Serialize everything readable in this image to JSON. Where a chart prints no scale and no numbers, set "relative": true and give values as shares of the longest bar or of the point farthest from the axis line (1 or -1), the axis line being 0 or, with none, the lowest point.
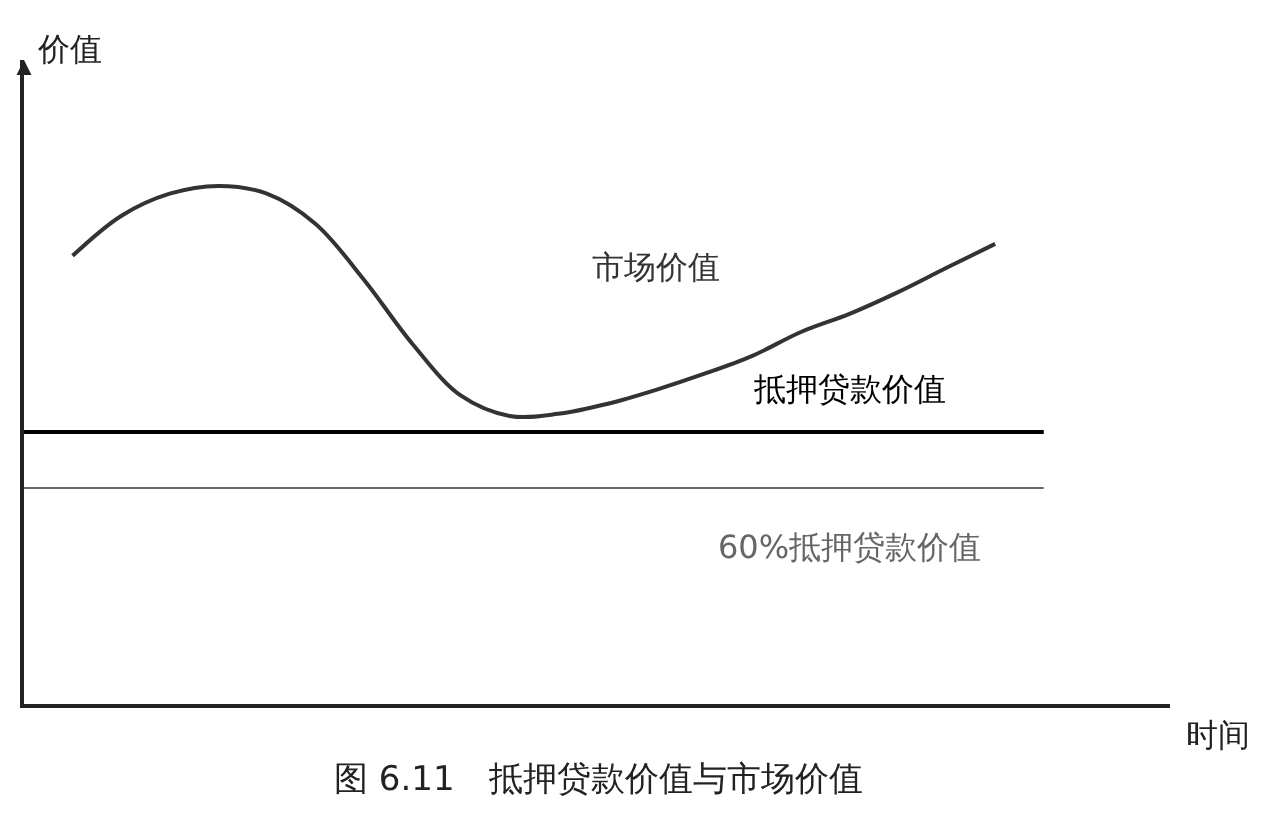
{
  "chart_data": {
    "type": "line",
    "relative": true,
    "title": "图 6.11　抵押贷款价值与市场价值",
    "xlabel": "时间",
    "ylabel": "价值",
    "categories": [
      null,
      null,
      null,
      null,
      null,
      null,
      null,
      null,
      null,
      null,
      null,
      null,
      null,
      null,
      null,
      null,
      null,
      null,
      null,
      null,
      null,
      null
    ],
    "series": [
      {
        "name": "市场价值",
        "color": "#333333",
        "values": [
          null,
          0.865,
          0.942,
          0.985,
          1.0,
          0.985,
          0.927,
          0.819,
          0.695,
          0.595,
          0.556,
          0.56,
          0.579,
          0.606,
          0.637,
          0.672,
          0.718,
          0.753,
          0.795,
          0.842,
          0.888,
          null
        ]
      },
      {
        "name": "抵押贷款价值",
        "color": "#000000",
        "values": [
          0.525,
          0.525,
          0.525,
          0.525,
          0.525,
          0.525,
          0.525,
          0.525,
          0.525,
          0.525,
          0.525,
          0.525,
          0.525,
          0.525,
          0.525,
          0.525,
          0.525,
          0.525,
          0.525,
          0.525,
          0.525,
          0.525
        ]
      },
      {
        "name": "60%抵押贷款价值",
        "color": "#666666",
        "values": [
          0.417,
          0.417,
          0.417,
          0.417,
          0.417,
          0.417,
          0.417,
          0.417,
          0.417,
          0.417,
          0.417,
          0.417,
          0.417,
          0.417,
          0.417,
          0.417,
          0.417,
          0.417,
          0.417,
          0.417,
          0.417,
          0.417
        ]
      }
    ]
  }
}
